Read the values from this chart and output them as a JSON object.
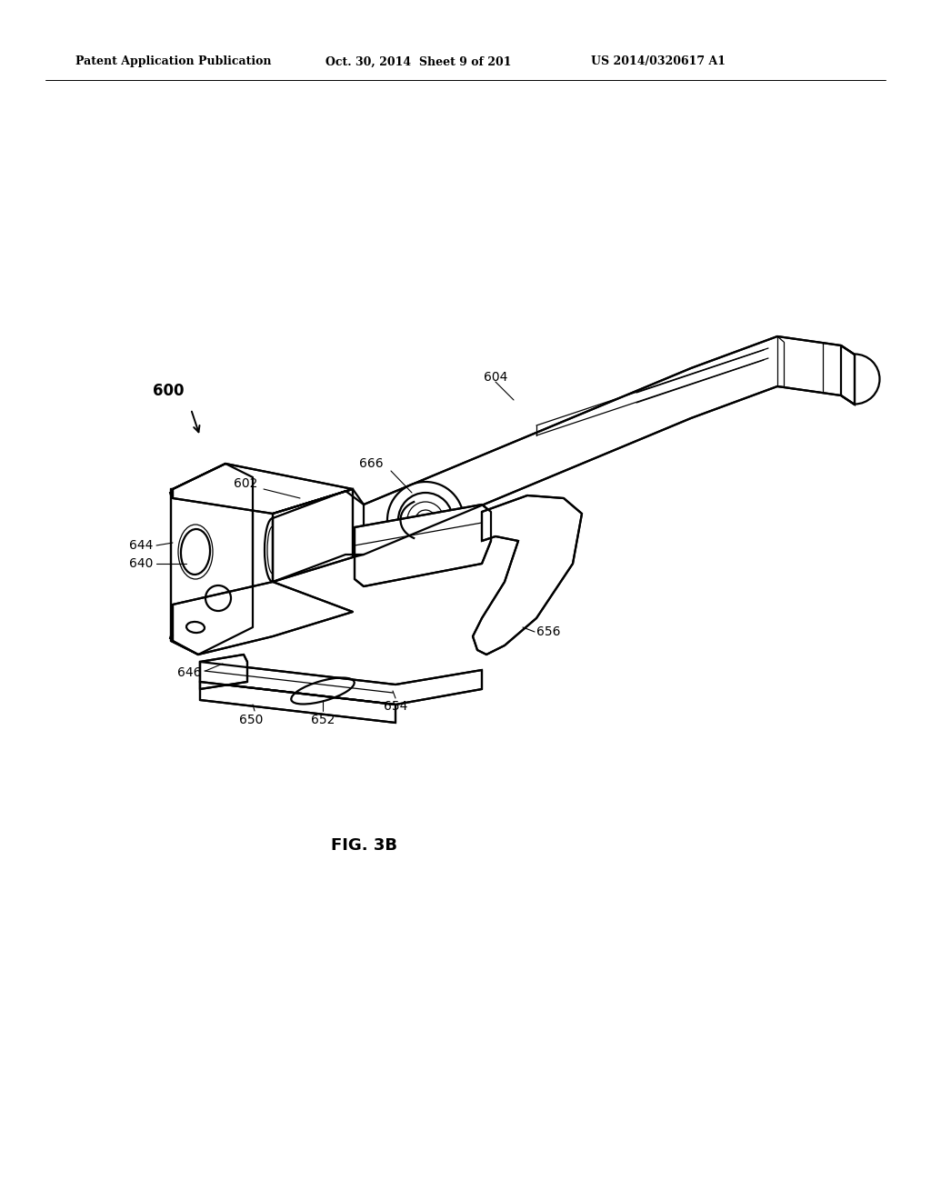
{
  "bg_color": "#ffffff",
  "header_left": "Patent Application Publication",
  "header_center": "Oct. 30, 2014  Sheet 9 of 201",
  "header_right": "US 2014/0320617 A1",
  "figure_label": "FIG. 3B",
  "lw": 1.6,
  "lw_t": 0.9,
  "lw_tt": 0.7,
  "fs_label": 10,
  "fs_header": 9,
  "fs_fig": 13,
  "fs_600": 12
}
